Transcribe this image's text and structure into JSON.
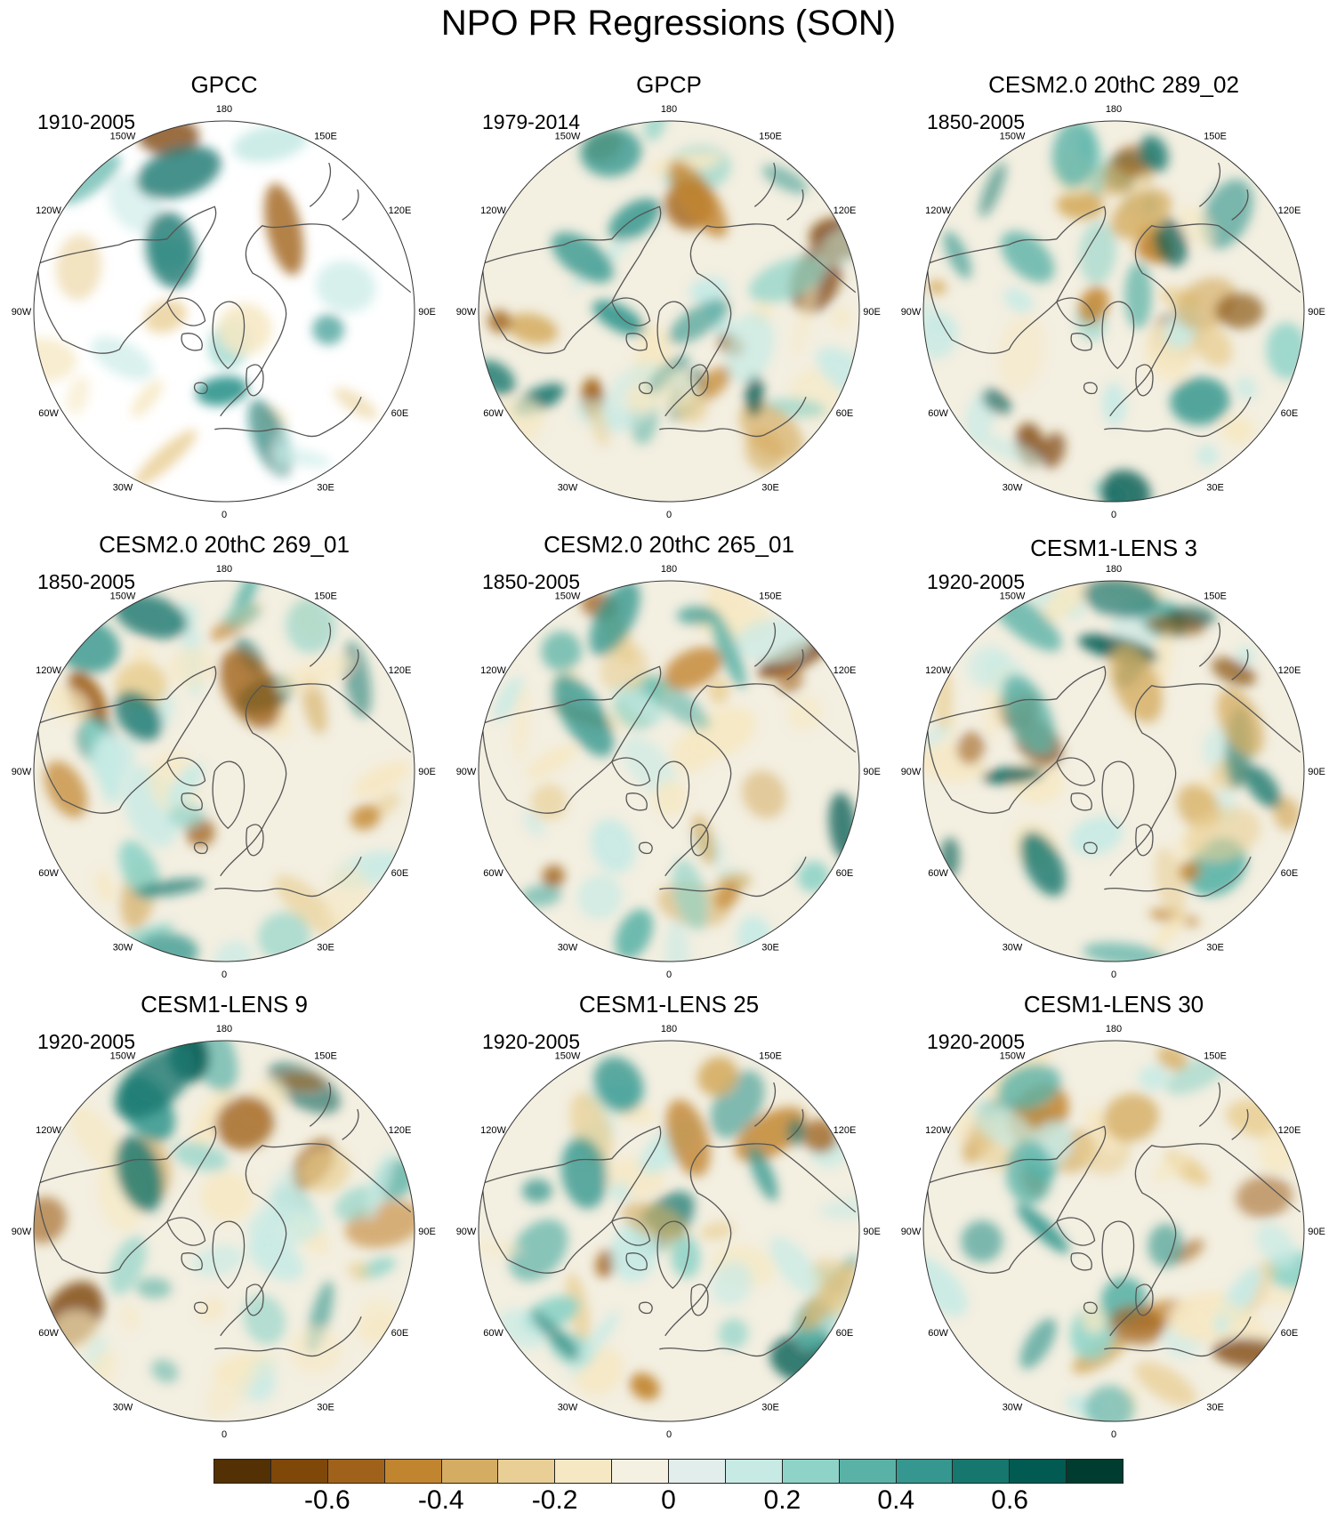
{
  "title": "NPO PR Regressions (SON)",
  "longitude_labels": [
    "180",
    "150E",
    "120E",
    "90E",
    "60E",
    "30E",
    "0",
    "30W",
    "60W",
    "90W",
    "120W",
    "150W"
  ],
  "colors": {
    "ocean_neutral": "#f3efe1",
    "coast": "#555555",
    "land_mask": "#ffffff"
  },
  "panels": [
    {
      "title": "GPCC",
      "period": "1910-2005",
      "land_only": true
    },
    {
      "title": "GPCP",
      "period": "1979-2014",
      "land_only": false
    },
    {
      "title": "CESM2.0 20thC 289_02",
      "period": "1850-2005",
      "land_only": false
    },
    {
      "title": "CESM2.0 20thC 269_01",
      "period": "1850-2005",
      "land_only": false
    },
    {
      "title": "CESM2.0 20thC 265_01",
      "period": "1850-2005",
      "land_only": false
    },
    {
      "title": "CESM1-LENS 3",
      "period": "1920-2005",
      "land_only": false
    },
    {
      "title": "CESM1-LENS 9",
      "period": "1920-2005",
      "land_only": false
    },
    {
      "title": "CESM1-LENS 25",
      "period": "1920-2005",
      "land_only": false
    },
    {
      "title": "CESM1-LENS 30",
      "period": "1920-2005",
      "land_only": false
    }
  ],
  "colorbar": {
    "colors": [
      "#543005",
      "#7f4809",
      "#a0621a",
      "#c2852f",
      "#d5ad62",
      "#e9cf95",
      "#f6e8c3",
      "#f4f0e2",
      "#e2eeeb",
      "#c7eae5",
      "#8fd3c8",
      "#5ab2a7",
      "#35978f",
      "#16776f",
      "#015b52",
      "#003c30"
    ],
    "tick_labels": [
      "-0.6",
      "-0.4",
      "-0.2",
      "0",
      "0.2",
      "0.4",
      "0.6"
    ]
  }
}
